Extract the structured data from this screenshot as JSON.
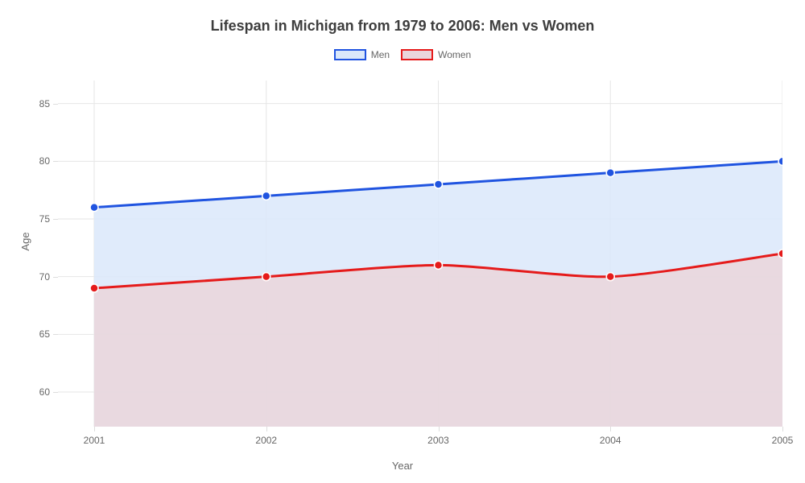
{
  "chart": {
    "type": "line-area",
    "title": "Lifespan in Michigan from 1979 to 2006: Men vs Women",
    "title_fontsize": 18,
    "title_color": "#3d3d3d",
    "background_color": "#ffffff",
    "plot_background": "#ffffff",
    "grid_color": "#e6e6e6",
    "tick_color": "#dddddd",
    "axis_label_color": "#666666",
    "tick_label_color": "#666666",
    "x": {
      "label": "Year",
      "categories": [
        "2001",
        "2002",
        "2003",
        "2004",
        "2005"
      ],
      "label_fontsize": 13,
      "tick_fontsize": 12
    },
    "y": {
      "label": "Age",
      "min": 57,
      "max": 87,
      "ticks": [
        60,
        65,
        70,
        75,
        80,
        85
      ],
      "label_fontsize": 13,
      "tick_fontsize": 12
    },
    "series": [
      {
        "name": "Men",
        "values": [
          76,
          77,
          78,
          79,
          80
        ],
        "line_color": "#2054e0",
        "fill_color": "#dae8fa",
        "fill_opacity": 0.85,
        "line_width": 3,
        "marker": "circle",
        "marker_size": 5,
        "marker_fill": "#2054e0",
        "marker_stroke": "#ffffff"
      },
      {
        "name": "Women",
        "values": [
          69,
          70,
          71,
          70,
          72
        ],
        "line_color": "#e51b1b",
        "fill_color": "#ead6db",
        "fill_opacity": 0.85,
        "line_width": 3,
        "marker": "circle",
        "marker_size": 5,
        "marker_fill": "#e51b1b",
        "marker_stroke": "#ffffff"
      }
    ],
    "legend": {
      "position": "top-center",
      "fontsize": 12,
      "swatch_width": 40,
      "swatch_height": 14
    },
    "tension": 0.35
  }
}
